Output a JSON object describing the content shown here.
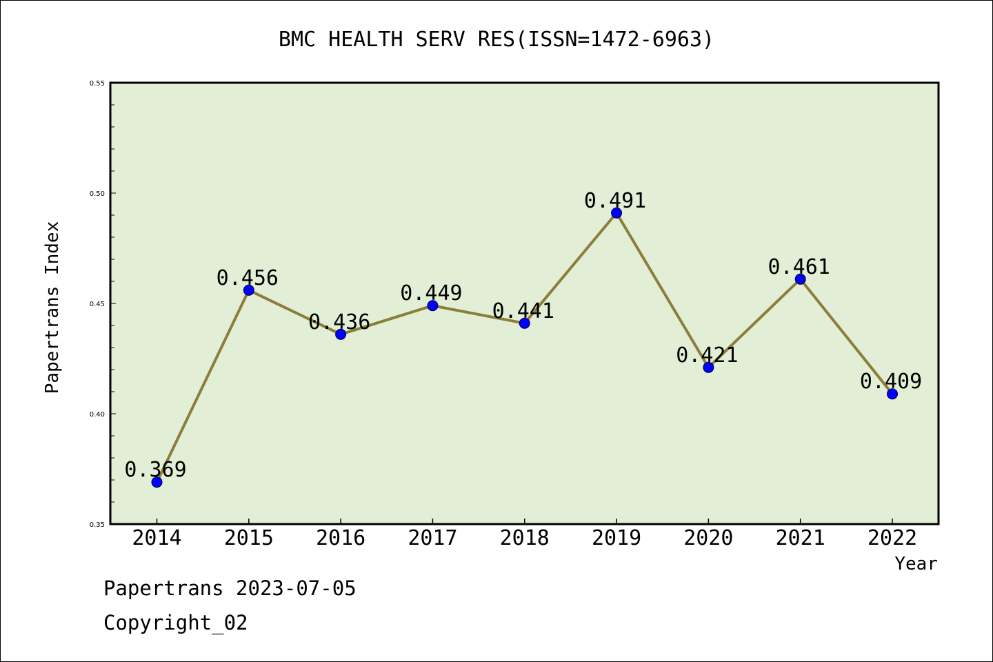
{
  "chart_data": {
    "type": "line",
    "title": "BMC HEALTH SERV RES(ISSN=1472-6963)",
    "xlabel": "Year",
    "ylabel": "Papertrans Index",
    "categories": [
      "2014",
      "2015",
      "2016",
      "2017",
      "2018",
      "2019",
      "2020",
      "2021",
      "2022"
    ],
    "series": [
      {
        "values": [
          0.369,
          0.456,
          0.436,
          0.449,
          0.441,
          0.491,
          0.421,
          0.461,
          0.409
        ],
        "data_labels": [
          "0.369",
          "0.456",
          "0.436",
          "0.449",
          "0.441",
          "0.491",
          "0.421",
          "0.461",
          "0.409"
        ]
      }
    ],
    "ylim": [
      0.35,
      0.55
    ],
    "yticks": [
      "0.35",
      "0.40",
      "0.45",
      "0.50",
      "0.55"
    ],
    "grid": false,
    "colors": {
      "plot_background": "#e2efd6",
      "line": "#8c7e3a",
      "marker": "#0000ff"
    }
  },
  "footer": {
    "line1": "Papertrans 2023-07-05",
    "line2": "Copyright_02"
  }
}
